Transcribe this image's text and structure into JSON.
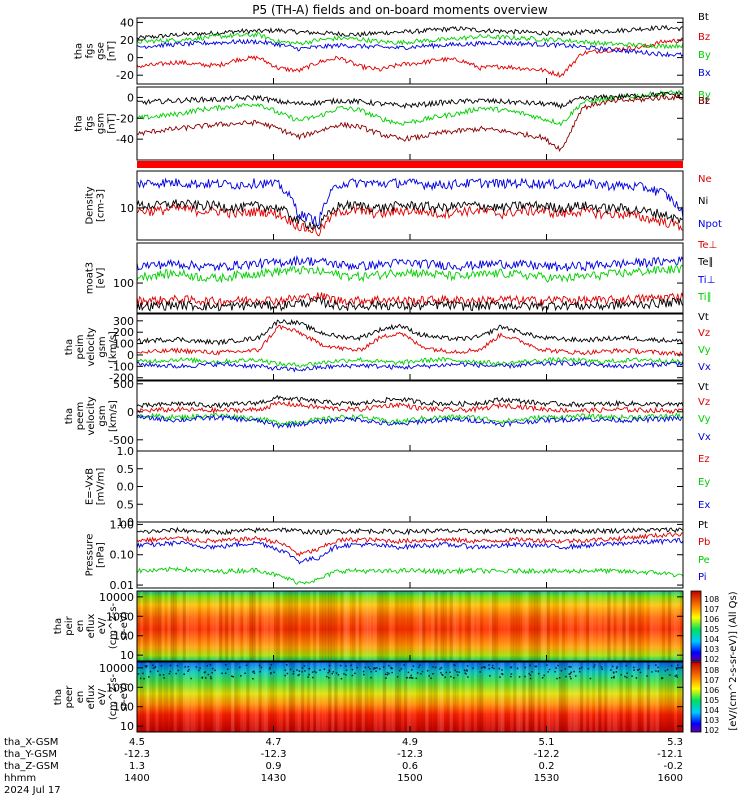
{
  "title": "P5 (TH-A) fields and on-board moments overview",
  "chart_data": [
    {
      "type": "line",
      "panel": "fgs_gse",
      "ylabel_lines": [
        "tha",
        "fgs",
        "gse",
        "[nT]"
      ],
      "ylim": [
        -30,
        45
      ],
      "yticks": [
        -20,
        0,
        20,
        40
      ],
      "series": [
        {
          "name": "Bt",
          "color": "#000000",
          "values": [
            22,
            24,
            26,
            27,
            28,
            30,
            30,
            31,
            29,
            28,
            27,
            26,
            28,
            29,
            30,
            32,
            33,
            31,
            30,
            29,
            28,
            27,
            29,
            30,
            31,
            33,
            34,
            33
          ]
        },
        {
          "name": "Bz",
          "color": "#e00000",
          "values": [
            -10,
            -8,
            -5,
            -8,
            -9,
            -2,
            0,
            -12,
            -15,
            -5,
            0,
            -10,
            -14,
            -8,
            -6,
            -2,
            -3,
            -12,
            -10,
            -12,
            -14,
            -20,
            5,
            8,
            10,
            12,
            18,
            20
          ]
        },
        {
          "name": "By",
          "color": "#00d000",
          "values": [
            18,
            19,
            20,
            22,
            24,
            25,
            26,
            18,
            16,
            20,
            22,
            21,
            18,
            17,
            19,
            20,
            22,
            24,
            23,
            22,
            21,
            20,
            18,
            16,
            15,
            14,
            13,
            14
          ]
        },
        {
          "name": "Bx",
          "color": "#0000e0",
          "values": [
            12,
            14,
            15,
            16,
            17,
            18,
            18,
            15,
            10,
            12,
            14,
            13,
            12,
            11,
            13,
            14,
            15,
            16,
            17,
            16,
            15,
            14,
            12,
            10,
            8,
            6,
            4,
            3
          ]
        }
      ]
    },
    {
      "type": "line",
      "panel": "fgs_gsm",
      "ylabel_lines": [
        "tha",
        "fgs",
        "gsm",
        "[nT]"
      ],
      "ylim": [
        -60,
        10
      ],
      "yticks": [
        -40,
        -20,
        0
      ],
      "series": [
        {
          "name": "By",
          "color": "#00d000",
          "values": [
            -20,
            -18,
            -16,
            -12,
            -10,
            -8,
            -6,
            -15,
            -22,
            -18,
            -10,
            -12,
            -20,
            -25,
            -22,
            -18,
            -15,
            -10,
            -12,
            -15,
            -20,
            -25,
            -5,
            -2,
            0,
            2,
            4,
            5
          ]
        },
        {
          "name": "Bt",
          "color": "#000000",
          "values": [
            -5,
            -4,
            -3,
            -2,
            -2,
            -1,
            0,
            -4,
            -6,
            -5,
            -3,
            -4,
            -6,
            -8,
            -7,
            -5,
            -4,
            -3,
            -4,
            -5,
            -6,
            -8,
            -1,
            0,
            1,
            2,
            3,
            3
          ]
        },
        {
          "name": "Bz",
          "color": "#8b0000",
          "values": [
            -35,
            -32,
            -30,
            -28,
            -26,
            -25,
            -24,
            -30,
            -38,
            -32,
            -26,
            -28,
            -35,
            -40,
            -38,
            -34,
            -32,
            -30,
            -32,
            -35,
            -38,
            -50,
            -10,
            -5,
            -3,
            -2,
            0,
            0
          ]
        }
      ]
    },
    {
      "type": "line",
      "panel": "density",
      "ylabel_lines": [
        "Density",
        "[cm-3]"
      ],
      "yscale": "log",
      "ylim": [
        3,
        40
      ],
      "yticks": [
        10
      ],
      "series": [
        {
          "name": "Ne",
          "color": "#e00000",
          "values": [
            9,
            9,
            10,
            9,
            9,
            8,
            9,
            8,
            5,
            4,
            9,
            9,
            8,
            9,
            9,
            8,
            9,
            9,
            8,
            9,
            9,
            8,
            9,
            8,
            8,
            7,
            6,
            5
          ]
        },
        {
          "name": "Ni",
          "color": "#000000",
          "values": [
            11,
            11,
            12,
            11,
            11,
            10,
            11,
            10,
            6,
            5,
            11,
            11,
            10,
            11,
            11,
            10,
            11,
            11,
            10,
            11,
            11,
            10,
            11,
            10,
            10,
            9,
            8,
            6
          ]
        },
        {
          "name": "Npot",
          "color": "#0000e0",
          "values": [
            25,
            26,
            26,
            25,
            25,
            24,
            26,
            24,
            8,
            6,
            25,
            26,
            25,
            26,
            25,
            24,
            25,
            26,
            25,
            26,
            25,
            24,
            25,
            24,
            23,
            22,
            18,
            8
          ]
        }
      ]
    },
    {
      "type": "line",
      "panel": "temperature",
      "ylabel_lines": [
        "moat3",
        "[eV]"
      ],
      "yscale": "log",
      "ylim": [
        30,
        500
      ],
      "yticks": [
        100
      ],
      "series": [
        {
          "name": "Te⊥",
          "color": "#e00000",
          "values": [
            50,
            50,
            52,
            50,
            48,
            50,
            52,
            50,
            55,
            60,
            50,
            50,
            52,
            50,
            50,
            52,
            50,
            50,
            52,
            50,
            50,
            52,
            50,
            50,
            52,
            54,
            56,
            60
          ]
        },
        {
          "name": "Te∥",
          "color": "#000000",
          "values": [
            40,
            40,
            42,
            40,
            39,
            40,
            42,
            40,
            45,
            48,
            40,
            40,
            42,
            40,
            40,
            42,
            40,
            40,
            42,
            40,
            40,
            42,
            40,
            40,
            42,
            43,
            45,
            48
          ]
        },
        {
          "name": "Ti⊥",
          "color": "#0000e0",
          "values": [
            200,
            210,
            220,
            200,
            190,
            210,
            220,
            230,
            250,
            240,
            210,
            200,
            210,
            230,
            220,
            210,
            200,
            210,
            220,
            210,
            200,
            190,
            200,
            210,
            220,
            230,
            240,
            250
          ]
        },
        {
          "name": "Ti∥",
          "color": "#00d000",
          "values": [
            130,
            140,
            150,
            130,
            120,
            140,
            150,
            160,
            170,
            160,
            140,
            130,
            140,
            160,
            150,
            140,
            130,
            140,
            150,
            140,
            130,
            120,
            130,
            140,
            150,
            160,
            170,
            180
          ]
        }
      ]
    },
    {
      "type": "line",
      "panel": "peim_velocity",
      "ylabel_lines": [
        "tha",
        "peim",
        "velocity",
        "gsm",
        "[km/s]"
      ],
      "ylim": [
        -220,
        360
      ],
      "yticks": [
        -200,
        -100,
        0,
        100,
        200,
        300
      ],
      "series": [
        {
          "name": "Vt",
          "color": "#000000",
          "values": [
            120,
            130,
            140,
            120,
            110,
            130,
            150,
            300,
            280,
            200,
            160,
            150,
            220,
            260,
            180,
            150,
            140,
            160,
            250,
            200,
            150,
            140,
            130,
            140,
            150,
            140,
            130,
            120
          ]
        },
        {
          "name": "Vz",
          "color": "#e00000",
          "values": [
            20,
            30,
            40,
            30,
            20,
            30,
            40,
            250,
            200,
            100,
            60,
            40,
            150,
            200,
            80,
            40,
            30,
            50,
            180,
            120,
            50,
            30,
            20,
            30,
            40,
            30,
            20,
            10
          ]
        },
        {
          "name": "Vy",
          "color": "#00d000",
          "values": [
            -60,
            -50,
            -40,
            -50,
            -60,
            -50,
            -40,
            -80,
            -90,
            -70,
            -50,
            -40,
            -60,
            -70,
            -50,
            -40,
            -50,
            -60,
            -80,
            -60,
            -50,
            -40,
            -50,
            -60,
            -50,
            -40,
            -50,
            -60
          ]
        },
        {
          "name": "Vx",
          "color": "#0000e0",
          "values": [
            -80,
            -90,
            -100,
            -90,
            -80,
            -90,
            -100,
            -120,
            -130,
            -110,
            -100,
            -90,
            -100,
            -110,
            -100,
            -90,
            -80,
            -90,
            -100,
            -90,
            -80,
            -70,
            -80,
            -90,
            -100,
            -90,
            -80,
            -70
          ]
        }
      ]
    },
    {
      "type": "line",
      "panel": "peem_velocity",
      "ylabel_lines": [
        "tha",
        "peem",
        "velocity",
        "gsm",
        "[km/s]"
      ],
      "ylim": [
        -700,
        550
      ],
      "yticks": [
        -500,
        0,
        500
      ],
      "series": [
        {
          "name": "Vt",
          "color": "#000000",
          "values": [
            100,
            120,
            150,
            130,
            110,
            140,
            160,
            250,
            220,
            180,
            150,
            140,
            200,
            230,
            170,
            150,
            140,
            160,
            220,
            190,
            150,
            140,
            130,
            140,
            150,
            140,
            130,
            120
          ]
        },
        {
          "name": "Vz",
          "color": "#e00000",
          "values": [
            20,
            30,
            40,
            30,
            20,
            30,
            40,
            150,
            120,
            80,
            50,
            40,
            100,
            130,
            60,
            40,
            30,
            50,
            120,
            90,
            50,
            30,
            20,
            30,
            40,
            30,
            20,
            10
          ]
        },
        {
          "name": "Vy",
          "color": "#00d000",
          "values": [
            -60,
            -80,
            -100,
            -80,
            -60,
            -90,
            -120,
            -200,
            -180,
            -140,
            -100,
            -90,
            -150,
            -180,
            -120,
            -100,
            -90,
            -110,
            -170,
            -140,
            -100,
            -90,
            -80,
            -90,
            -100,
            -90,
            -80,
            -70
          ]
        },
        {
          "name": "Vx",
          "color": "#0000e0",
          "values": [
            -100,
            -120,
            -150,
            -120,
            -100,
            -130,
            -160,
            -250,
            -220,
            -180,
            -140,
            -130,
            -200,
            -230,
            -170,
            -150,
            -140,
            -160,
            -220,
            -190,
            -150,
            -140,
            -130,
            -140,
            -150,
            -140,
            -130,
            -120
          ]
        }
      ]
    },
    {
      "type": "line",
      "panel": "efield",
      "ylabel_lines": [
        "E=-VxB",
        "[mV/m]"
      ],
      "ylim": [
        -1.0,
        1.0
      ],
      "yticks": [
        -1.0,
        -0.5,
        0.0,
        0.5,
        1.0
      ],
      "yticklabels": [
        "1.0",
        "0.5",
        "0.0",
        "0.5",
        "1.0"
      ],
      "series": [
        {
          "name": "Ez",
          "color": "#e00000",
          "values": []
        },
        {
          "name": "Ey",
          "color": "#00d000",
          "values": []
        },
        {
          "name": "Ex",
          "color": "#0000e0",
          "values": []
        }
      ]
    },
    {
      "type": "line",
      "panel": "pressure",
      "ylabel_lines": [
        "Pressure",
        "[nPa]"
      ],
      "yscale": "log",
      "ylim": [
        0.008,
        1.2
      ],
      "yticks": [
        0.01,
        0.1,
        1.0
      ],
      "yticklabels": [
        "0.01",
        "0.10",
        "1.00"
      ],
      "series": [
        {
          "name": "Pt",
          "color": "#000000",
          "values": [
            0.55,
            0.6,
            0.65,
            0.6,
            0.55,
            0.6,
            0.65,
            0.7,
            0.6,
            0.55,
            0.6,
            0.62,
            0.6,
            0.58,
            0.6,
            0.62,
            0.6,
            0.58,
            0.6,
            0.62,
            0.6,
            0.58,
            0.6,
            0.62,
            0.63,
            0.65,
            0.66,
            0.68
          ]
        },
        {
          "name": "Pb",
          "color": "#e00000",
          "values": [
            0.3,
            0.32,
            0.35,
            0.3,
            0.28,
            0.32,
            0.35,
            0.25,
            0.1,
            0.15,
            0.3,
            0.32,
            0.3,
            0.28,
            0.3,
            0.32,
            0.3,
            0.28,
            0.3,
            0.32,
            0.3,
            0.28,
            0.3,
            0.32,
            0.35,
            0.4,
            0.45,
            0.5
          ]
        },
        {
          "name": "Pe",
          "color": "#00d000",
          "values": [
            0.03,
            0.03,
            0.035,
            0.03,
            0.028,
            0.03,
            0.032,
            0.02,
            0.012,
            0.015,
            0.03,
            0.03,
            0.028,
            0.03,
            0.03,
            0.028,
            0.03,
            0.03,
            0.028,
            0.03,
            0.03,
            0.028,
            0.03,
            0.03,
            0.028,
            0.027,
            0.025,
            0.02
          ]
        },
        {
          "name": "Pi",
          "color": "#0000e0",
          "values": [
            0.2,
            0.22,
            0.25,
            0.2,
            0.18,
            0.22,
            0.25,
            0.15,
            0.06,
            0.08,
            0.2,
            0.22,
            0.2,
            0.18,
            0.2,
            0.22,
            0.2,
            0.18,
            0.2,
            0.22,
            0.2,
            0.18,
            0.2,
            0.22,
            0.24,
            0.26,
            0.28,
            0.3
          ]
        }
      ]
    },
    {
      "type": "heatmap",
      "panel": "peir_en_eflux",
      "ylabel_lines": [
        "tha",
        "peir",
        "en",
        "eflux",
        "eV/",
        "(cm^2-s-",
        "sr-eV)"
      ],
      "yscale": "log",
      "ylim": [
        5,
        20000
      ],
      "yticks": [
        10,
        100,
        1000,
        10000
      ],
      "yticklabels": [
        "10",
        "100",
        "1000",
        "10000"
      ]
    },
    {
      "type": "heatmap",
      "panel": "peer_en_eflux",
      "ylabel_lines": [
        "tha",
        "peer",
        "en",
        "eflux",
        "eV/",
        "(cm^2-s-",
        "sr-eV)"
      ],
      "yscale": "log",
      "ylim": [
        5,
        20000
      ],
      "yticks": [
        10,
        100,
        1000,
        10000
      ],
      "yticklabels": [
        "10",
        "100",
        "1000",
        "10000"
      ]
    }
  ],
  "colorbar": {
    "label": "[eV/(cm^2-s-sr-eV)] (All Qs)",
    "top_ticks": [
      "10^8",
      "10^7",
      "10^6",
      "10^5",
      "10^4",
      "10^3",
      "10^2"
    ],
    "bottom_ticks": [
      "10^8",
      "10^7",
      "10^6",
      "10^5",
      "10^4",
      "10^3",
      "10^2"
    ]
  },
  "x_axis": {
    "rows": [
      {
        "label": "tha_X-GSM",
        "values": [
          "4.5",
          "4.7",
          "4.9",
          "5.1",
          "5.3"
        ]
      },
      {
        "label": "tha_Y-GSM",
        "values": [
          "-12.3",
          "-12.3",
          "-12.3",
          "-12.2",
          "-12.1"
        ]
      },
      {
        "label": "tha_Z-GSM",
        "values": [
          "1.3",
          "0.9",
          "0.6",
          "0.2",
          "-0.2"
        ]
      },
      {
        "label": "hhmm",
        "values": [
          "1400",
          "1430",
          "1500",
          "1530",
          "1600"
        ]
      }
    ],
    "date": "2024 Jul 17"
  }
}
